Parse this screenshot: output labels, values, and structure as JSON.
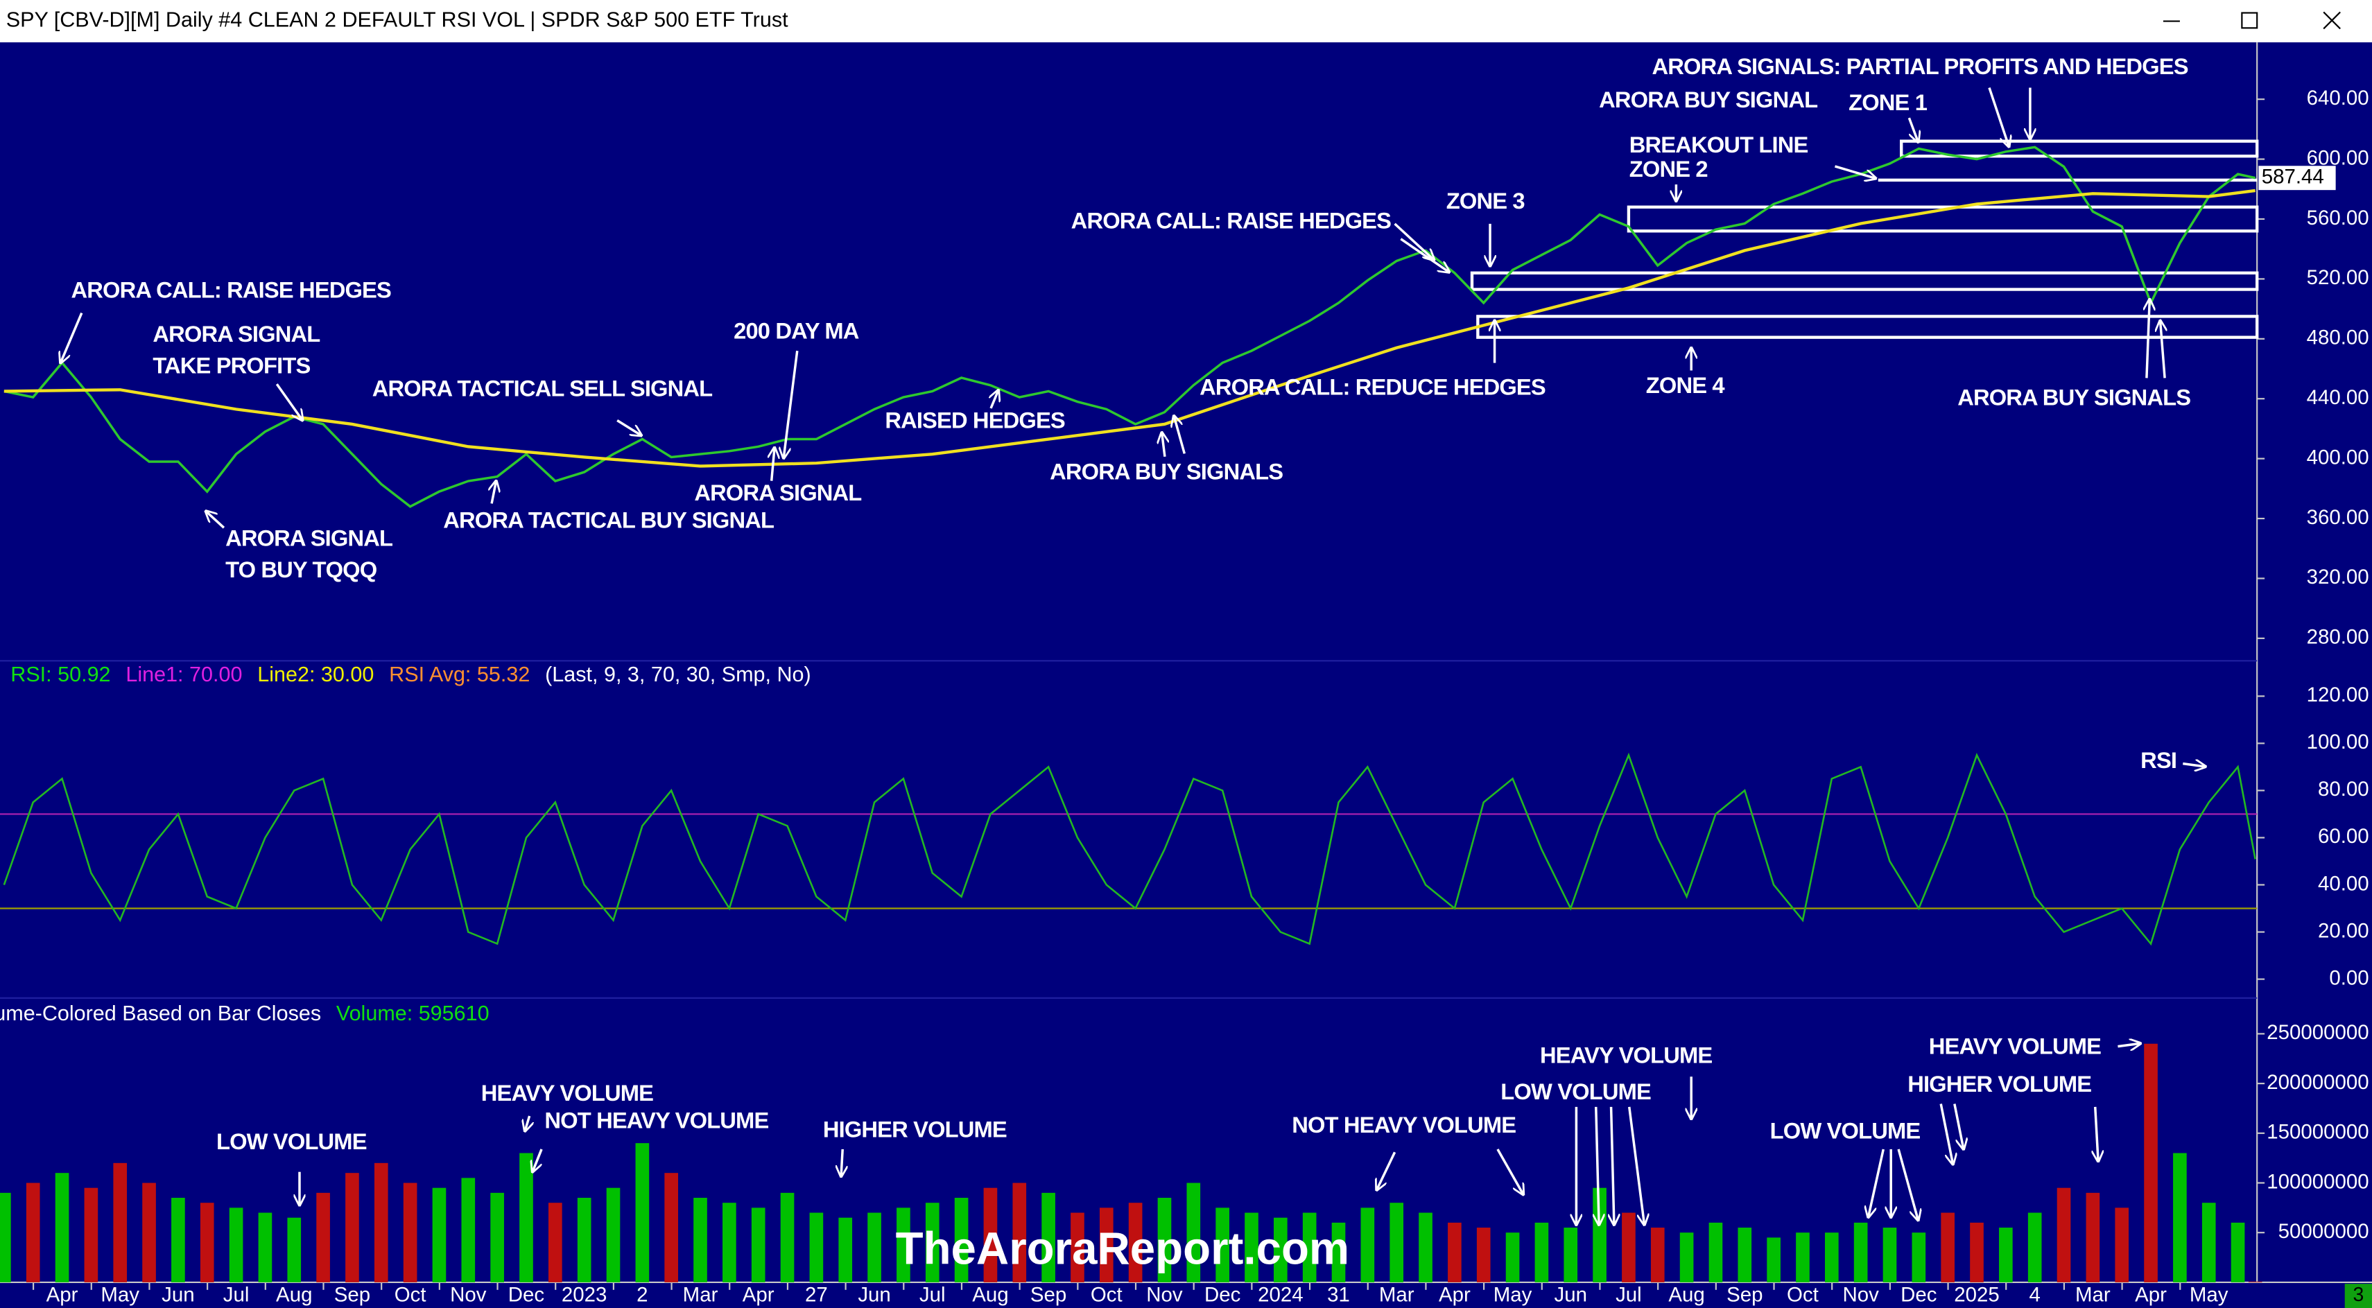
{
  "window": {
    "title": "SPY [CBV-D][M]  Daily #4 CLEAN  2 DEFAULT RSI VOL | SPDR S&P 500 ETF Trust"
  },
  "chart_data": [
    {
      "type": "line",
      "x": [
        0,
        0.5,
        1,
        1.5,
        2,
        2.5,
        3,
        3.5,
        4,
        4.5,
        5,
        5.5,
        6,
        6.5,
        7,
        7.5,
        8,
        8.5,
        9,
        9.5,
        10,
        10.5,
        11,
        11.5,
        12,
        12.5,
        13,
        13.5,
        14,
        14.5,
        15,
        15.5,
        16,
        16.5,
        17,
        17.5,
        18,
        18.5,
        19,
        19.5,
        20,
        20.5,
        21,
        21.5,
        22,
        22.5,
        23,
        23.5,
        24,
        24.5,
        25,
        25.5,
        26,
        26.5,
        27,
        27.5,
        28,
        28.5,
        29,
        29.5,
        30,
        30.5,
        31,
        31.5,
        32,
        32.5,
        33,
        33.5,
        34,
        34.5,
        35,
        35.5,
        36,
        36.5,
        37,
        37.5,
        38,
        38.5,
        38.8
      ],
      "series": [
        {
          "color": "#2ec82e",
          "values": [
            445,
            441,
            464,
            441,
            413,
            398,
            398,
            378,
            403,
            418,
            428,
            423,
            403,
            383,
            368,
            378,
            385,
            388,
            403,
            385,
            391,
            403,
            413,
            401,
            403,
            405,
            408,
            413,
            413,
            423,
            433,
            441,
            445,
            454,
            449,
            441,
            445,
            438,
            433,
            423,
            431,
            449,
            464,
            472,
            482,
            492,
            504,
            519,
            532,
            539,
            524,
            504,
            526,
            536,
            546,
            563,
            555,
            529,
            544,
            553,
            557,
            570,
            577,
            585,
            590,
            597,
            607,
            603,
            600,
            605,
            608,
            595,
            565,
            555,
            504,
            544,
            575,
            590,
            587.44
          ]
        },
        {
          "color": "#f0e020",
          "x": [
            0,
            2,
            4,
            6,
            8,
            10,
            12,
            14,
            16,
            18,
            20,
            22,
            24,
            26,
            28,
            30,
            32,
            34,
            36,
            38,
            38.8
          ],
          "values": [
            445,
            446,
            433,
            423,
            408,
            401,
            395,
            397,
            403,
            413,
            423,
            449,
            474,
            494,
            514,
            539,
            557,
            570,
            577,
            575,
            579
          ]
        }
      ],
      "ylim": [
        267,
        678
      ],
      "yticks": [
        {
          "value": 640,
          "label": "640.00"
        },
        {
          "value": 600,
          "label": "600.00"
        },
        {
          "value": 560,
          "label": "560.00"
        },
        {
          "value": 520,
          "label": "520.00"
        },
        {
          "value": 480,
          "label": "480.00"
        },
        {
          "value": 440,
          "label": "440.00"
        },
        {
          "value": 400,
          "label": "400.00"
        },
        {
          "value": 360,
          "label": "360.00"
        },
        {
          "value": 320,
          "label": "320.00"
        },
        {
          "value": 280,
          "label": "280.00"
        }
      ],
      "last_value": 587.44,
      "bands": [
        {
          "ylim": [
            602,
            612
          ],
          "x_start": 32.7
        },
        {
          "ylim": [
            552,
            568
          ],
          "x_start": 28.0
        },
        {
          "ylim": [
            513,
            524
          ],
          "x_start": 25.3
        },
        {
          "ylim": [
            481,
            495
          ],
          "x_start": 25.4
        }
      ],
      "hlines": [
        {
          "value": 586,
          "x_start": 32.3
        }
      ],
      "annotations": [
        "ARORA SIGNALS: PARTIAL PROFITS AND HEDGES",
        "ARORA BUY SIGNAL",
        "ZONE 1",
        "BREAKOUT LINE",
        "ZONE 2",
        "ARORA CALL: RAISE HEDGES",
        "ZONE 3",
        "ARORA CALL: RAISE HEDGES",
        "ARORA SIGNAL",
        "TAKE PROFITS",
        "200 DAY MA",
        "ARORA TACTICAL SELL SIGNAL",
        "RAISED HEDGES",
        "ARORA CALL: REDUCE HEDGES",
        "ZONE 4",
        "ARORA BUY SIGNALS",
        "ARORA BUY SIGNALS",
        "ARORA SIGNAL",
        "ARORA TACTICAL BUY SIGNAL",
        "ARORA SIGNAL",
        "TO BUY TQQQ"
      ]
    },
    {
      "type": "line",
      "header": [
        {
          "text": "RSI: 50.92",
          "color": "#10e010"
        },
        {
          "text": "Line1: 70.00",
          "color": "#e020e0"
        },
        {
          "text": "Line2: 30.00",
          "color": "#f0f000"
        },
        {
          "text": "RSI Avg: 55.32",
          "color": "#ff9030"
        },
        {
          "text": "(Last, 9, 3, 70, 30, Smp, No)",
          "color": "#ffffff"
        }
      ],
      "x": [
        0,
        0.5,
        1,
        1.5,
        2,
        2.5,
        3,
        3.5,
        4,
        4.5,
        5,
        5.5,
        6,
        6.5,
        7,
        7.5,
        8,
        8.5,
        9,
        9.5,
        10,
        10.5,
        11,
        11.5,
        12,
        12.5,
        13,
        13.5,
        14,
        14.5,
        15,
        15.5,
        16,
        16.5,
        17,
        17.5,
        18,
        18.5,
        19,
        19.5,
        20,
        20.5,
        21,
        21.5,
        22,
        22.5,
        23,
        23.5,
        24,
        24.5,
        25,
        25.5,
        26,
        26.5,
        27,
        27.5,
        28,
        28.5,
        29,
        29.5,
        30,
        30.5,
        31,
        31.5,
        32,
        32.5,
        33,
        33.5,
        34,
        34.5,
        35,
        35.5,
        36,
        36.5,
        37,
        37.5,
        38,
        38.5,
        38.8
      ],
      "series": [
        {
          "color": "#22b822",
          "values": [
            40,
            75,
            85,
            45,
            25,
            55,
            70,
            35,
            30,
            60,
            80,
            85,
            40,
            25,
            55,
            70,
            20,
            15,
            60,
            75,
            40,
            25,
            65,
            80,
            50,
            30,
            70,
            65,
            35,
            25,
            75,
            85,
            45,
            35,
            70,
            80,
            90,
            60,
            40,
            30,
            55,
            85,
            80,
            35,
            20,
            15,
            75,
            90,
            65,
            40,
            30,
            75,
            85,
            55,
            30,
            65,
            95,
            60,
            35,
            70,
            80,
            40,
            25,
            85,
            90,
            50,
            30,
            60,
            95,
            70,
            35,
            20,
            25,
            30,
            15,
            55,
            75,
            90,
            50.92
          ]
        }
      ],
      "levels": [
        {
          "value": 70,
          "color": "#b020b0"
        },
        {
          "value": 30,
          "color": "#a0a000"
        }
      ],
      "ylim": [
        -8,
        135
      ],
      "yticks": [
        {
          "value": 120,
          "label": "120.00"
        },
        {
          "value": 100,
          "label": "100.00"
        },
        {
          "value": 80,
          "label": "80.00"
        },
        {
          "value": 60,
          "label": "60.00"
        },
        {
          "value": 40,
          "label": "40.00"
        },
        {
          "value": 20,
          "label": "20.00"
        },
        {
          "value": 0,
          "label": "0.00"
        }
      ],
      "annotations": [
        "RSI"
      ]
    },
    {
      "type": "bar",
      "header": [
        {
          "text": "ume-Colored Based on Bar Closes",
          "color": "#ffffff"
        },
        {
          "text": "Volume: 595610",
          "color": "#10e010"
        }
      ],
      "x": [
        0,
        0.5,
        1,
        1.5,
        2,
        2.5,
        3,
        3.5,
        4,
        4.5,
        5,
        5.5,
        6,
        6.5,
        7,
        7.5,
        8,
        8.5,
        9,
        9.5,
        10,
        10.5,
        11,
        11.5,
        12,
        12.5,
        13,
        13.5,
        14,
        14.5,
        15,
        15.5,
        16,
        16.5,
        17,
        17.5,
        18,
        18.5,
        19,
        19.5,
        20,
        20.5,
        21,
        21.5,
        22,
        22.5,
        23,
        23.5,
        24,
        24.5,
        25,
        25.5,
        26,
        26.5,
        27,
        27.5,
        28,
        28.5,
        29,
        29.5,
        30,
        30.5,
        31,
        31.5,
        32,
        32.5,
        33,
        33.5,
        34,
        34.5,
        35,
        35.5,
        36,
        36.5,
        37,
        37.5,
        38,
        38.5,
        38.8
      ],
      "values": [
        90000000,
        100000000,
        110000000,
        95000000,
        120000000,
        100000000,
        85000000,
        80000000,
        75000000,
        70000000,
        65000000,
        90000000,
        110000000,
        120000000,
        100000000,
        95000000,
        105000000,
        90000000,
        130000000,
        80000000,
        85000000,
        95000000,
        140000000,
        110000000,
        85000000,
        80000000,
        75000000,
        90000000,
        70000000,
        65000000,
        70000000,
        75000000,
        80000000,
        85000000,
        95000000,
        100000000,
        90000000,
        70000000,
        75000000,
        80000000,
        85000000,
        100000000,
        75000000,
        70000000,
        65000000,
        70000000,
        60000000,
        75000000,
        80000000,
        70000000,
        60000000,
        55000000,
        50000000,
        60000000,
        55000000,
        95000000,
        70000000,
        55000000,
        50000000,
        60000000,
        55000000,
        45000000,
        50000000,
        50000000,
        60000000,
        55000000,
        50000000,
        70000000,
        60000000,
        55000000,
        70000000,
        95000000,
        90000000,
        75000000,
        240000000,
        130000000,
        80000000,
        60000000,
        595610
      ],
      "up_color": "#00c000",
      "down_color": "#c01010",
      "ylim": [
        0,
        286000000
      ],
      "yticks": [
        250000000,
        200000000,
        150000000,
        100000000,
        50000000
      ],
      "xlim": [
        -0.07,
        38.83
      ],
      "xticks": [
        {
          "value": 1,
          "label": "Apr"
        },
        {
          "value": 2,
          "label": "May"
        },
        {
          "value": 3,
          "label": "Jun"
        },
        {
          "value": 4,
          "label": "Jul"
        },
        {
          "value": 5,
          "label": "Aug"
        },
        {
          "value": 6,
          "label": "Sep"
        },
        {
          "value": 7,
          "label": "Oct"
        },
        {
          "value": 8,
          "label": "Nov"
        },
        {
          "value": 9,
          "label": "Dec"
        },
        {
          "value": 10,
          "label": "2023"
        },
        {
          "value": 11,
          "label": "2"
        },
        {
          "value": 12,
          "label": "Mar"
        },
        {
          "value": 13,
          "label": "Apr"
        },
        {
          "value": 14,
          "label": "27"
        },
        {
          "value": 15,
          "label": "Jun"
        },
        {
          "value": 16,
          "label": "Jul"
        },
        {
          "value": 17,
          "label": "Aug"
        },
        {
          "value": 18,
          "label": "Sep"
        },
        {
          "value": 19,
          "label": "Oct"
        },
        {
          "value": 20,
          "label": "Nov"
        },
        {
          "value": 21,
          "label": "Dec"
        },
        {
          "value": 22,
          "label": "2024"
        },
        {
          "value": 23,
          "label": "31"
        },
        {
          "value": 24,
          "label": "Mar"
        },
        {
          "value": 25,
          "label": "Apr"
        },
        {
          "value": 26,
          "label": "May"
        },
        {
          "value": 27,
          "label": "Jun"
        },
        {
          "value": 28,
          "label": "Jul"
        },
        {
          "value": 29,
          "label": "Aug"
        },
        {
          "value": 30,
          "label": "Sep"
        },
        {
          "value": 31,
          "label": "Oct"
        },
        {
          "value": 32,
          "label": "Nov"
        },
        {
          "value": 33,
          "label": "Dec"
        },
        {
          "value": 34,
          "label": "2025"
        },
        {
          "value": 35,
          "label": "4"
        },
        {
          "value": 36,
          "label": "Mar"
        },
        {
          "value": 37,
          "label": "Apr"
        },
        {
          "value": 38,
          "label": "May"
        }
      ],
      "annotations": [
        "HEAVY VOLUME",
        "NOT HEAVY VOLUME",
        "LOW VOLUME",
        "HIGHER VOLUME",
        "NOT HEAVY VOLUME",
        "HEAVY VOLUME",
        "LOW VOLUME",
        "LOW VOLUME",
        "HEAVY VOLUME",
        "HIGHER VOLUME"
      ]
    }
  ],
  "watermark": "TheAroraReport.com",
  "corner_badge": "3"
}
